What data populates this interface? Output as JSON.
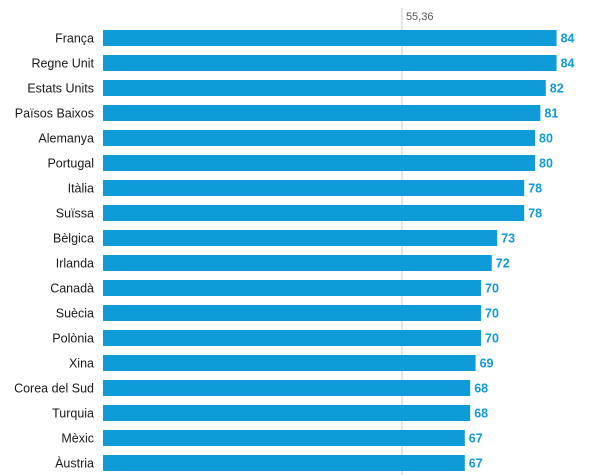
{
  "chart_data": {
    "type": "bar",
    "orientation": "horizontal",
    "categories": [
      "França",
      "Regne Unit",
      "Estats Units",
      "Països Baixos",
      "Alemanya",
      "Portugal",
      "Itàlia",
      "Suïssa",
      "Bèlgica",
      "Irlanda",
      "Canadà",
      "Suècia",
      "Polònia",
      "Xina",
      "Corea del Sud",
      "Turquia",
      "Mèxic",
      "Àustria"
    ],
    "values": [
      84,
      84,
      82,
      81,
      80,
      80,
      78,
      78,
      73,
      72,
      70,
      70,
      70,
      69,
      68,
      68,
      67,
      67
    ],
    "reference_line": {
      "value": 55.36,
      "label": "55,36"
    },
    "xlim": [
      0,
      100
    ],
    "grid": false,
    "bar_color": "#0f9ad8",
    "value_label_color": "#0f9ad8",
    "reference_line_color": "#cccccc"
  }
}
